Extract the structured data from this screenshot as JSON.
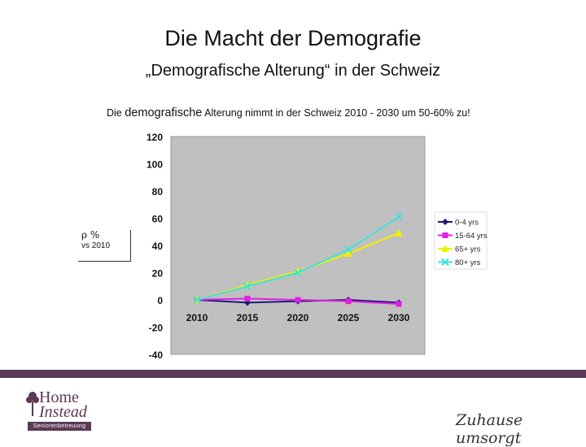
{
  "header": {
    "title": "Die Macht der Demografie",
    "subtitle": "„Demografische Alterung“ in der Schweiz"
  },
  "description": {
    "part1": "Die ",
    "part2": "demografische",
    "part3": " Alterung nimmt in der Schweiz 2010 - 2030 um 50-60% zu!"
  },
  "ylabel_box": {
    "symbol": "ρ %",
    "text": "vs 2010"
  },
  "chart_data": {
    "type": "line",
    "categories": [
      "2010",
      "2015",
      "2020",
      "2025",
      "2030"
    ],
    "ylim": [
      -40,
      120
    ],
    "yticks": [
      "120",
      "100",
      "80",
      "60",
      "40",
      "20",
      "0",
      "-20",
      "-40"
    ],
    "ytick_values": [
      120,
      100,
      80,
      60,
      40,
      20,
      0,
      -20,
      -40
    ],
    "grid": false,
    "legend_position": "right",
    "series": [
      {
        "name": "0-4 yrs",
        "color": "#1a1a7a",
        "marker": "diamond",
        "values": [
          0,
          -2,
          -1,
          0,
          -2
        ]
      },
      {
        "name": "15-64 yrs",
        "color": "#e020e0",
        "marker": "square",
        "values": [
          0,
          1,
          0,
          -1,
          -3
        ]
      },
      {
        "name": "65+ yrs",
        "color": "#f0f000",
        "marker": "triangle",
        "values": [
          0,
          11,
          21,
          34,
          49
        ]
      },
      {
        "name": "80+ yrs",
        "color": "#40e0e0",
        "marker": "x",
        "values": [
          0,
          10,
          20,
          37,
          61
        ]
      }
    ]
  },
  "footer": {
    "logo_line1": "Home",
    "logo_line2": "Instead",
    "logo_line3": "Seniorenbetreuung",
    "slogan": "Zuhause umsorgt"
  }
}
